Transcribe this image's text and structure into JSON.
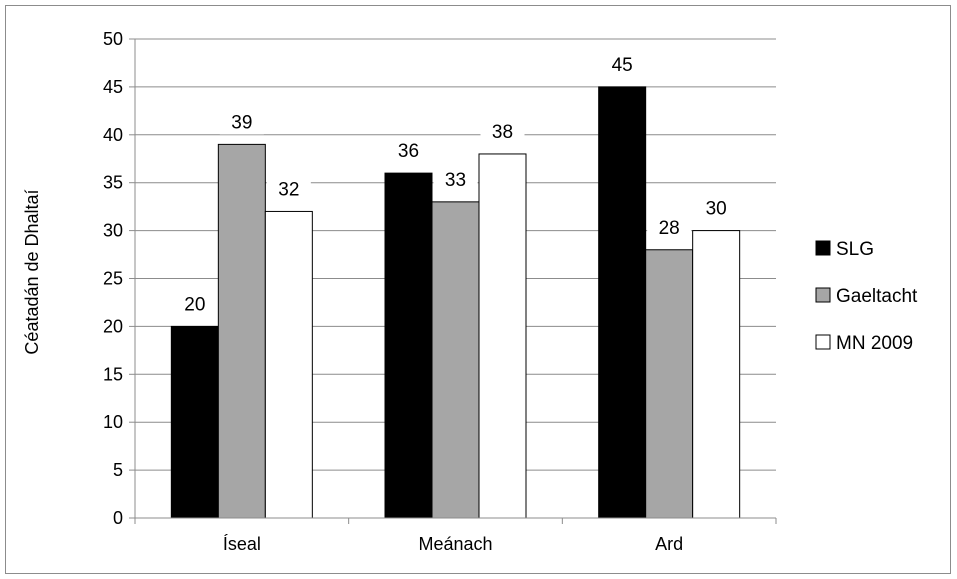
{
  "chart_data": {
    "type": "bar",
    "categories": [
      "Íseal",
      "Meánach",
      "Ard"
    ],
    "series": [
      {
        "name": "SLG",
        "values": [
          20,
          36,
          45
        ],
        "color": "#000000"
      },
      {
        "name": "Gaeltacht",
        "values": [
          39,
          33,
          28
        ],
        "color": "#a6a6a6"
      },
      {
        "name": "MN 2009",
        "values": [
          32,
          38,
          30
        ],
        "color": "#ffffff"
      }
    ],
    "ylabel": "Céatadán de Dhaltaí",
    "ylim": [
      0,
      50
    ],
    "yticks": [
      0,
      5,
      10,
      15,
      20,
      25,
      30,
      35,
      40,
      45,
      50
    ],
    "grid": true,
    "legend_position": "right",
    "data_labels": true
  }
}
